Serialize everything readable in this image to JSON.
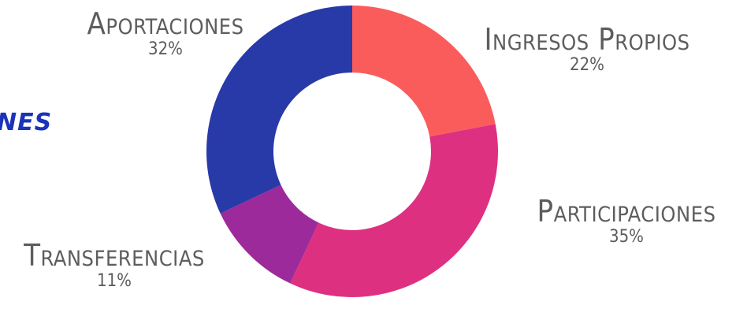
{
  "title_fragment": "NES",
  "chart_data": {
    "type": "pie",
    "variant": "donut",
    "slices": [
      {
        "label": "Ingresos Propios",
        "value": 22,
        "value_label": "22%",
        "color": "#fa5c5c"
      },
      {
        "label": "Participaciones",
        "value": 35,
        "value_label": "35%",
        "color": "#de3081"
      },
      {
        "label": "Transferencias",
        "value": 11,
        "value_label": "11%",
        "color": "#9c2a9a"
      },
      {
        "label": "Aportaciones",
        "value": 32,
        "value_label": "32%",
        "color": "#283aa8"
      }
    ]
  }
}
